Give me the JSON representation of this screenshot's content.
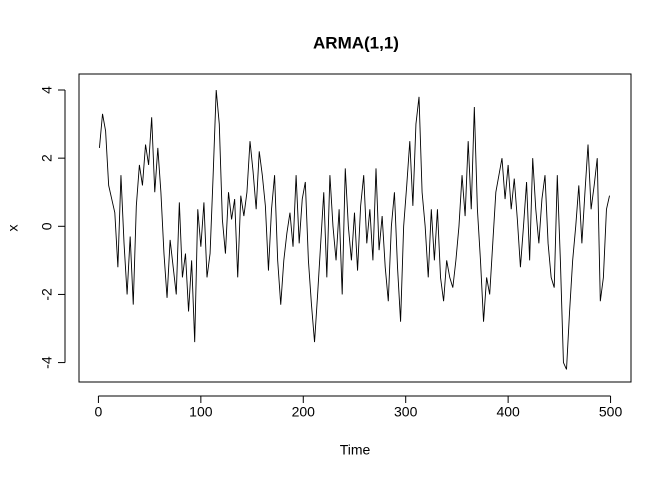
{
  "chart_data": {
    "type": "line",
    "title": "ARMA(1,1)",
    "xlabel": "Time",
    "ylabel": "x",
    "color": "#000000",
    "x": [
      1,
      4,
      7,
      10,
      13,
      16,
      19,
      22,
      25,
      28,
      31,
      34,
      37,
      40,
      43,
      46,
      49,
      52,
      55,
      58,
      61,
      64,
      67,
      70,
      73,
      76,
      79,
      82,
      85,
      88,
      91,
      94,
      97,
      100,
      103,
      106,
      109,
      112,
      115,
      118,
      121,
      124,
      127,
      130,
      133,
      136,
      139,
      142,
      145,
      148,
      151,
      154,
      157,
      160,
      163,
      166,
      169,
      172,
      175,
      178,
      181,
      184,
      187,
      190,
      193,
      196,
      199,
      202,
      205,
      208,
      211,
      214,
      217,
      220,
      223,
      226,
      229,
      232,
      235,
      238,
      241,
      244,
      247,
      250,
      253,
      256,
      259,
      262,
      265,
      268,
      271,
      274,
      277,
      280,
      283,
      286,
      289,
      292,
      295,
      298,
      301,
      304,
      307,
      310,
      313,
      316,
      319,
      322,
      325,
      328,
      331,
      334,
      337,
      340,
      343,
      346,
      349,
      352,
      355,
      358,
      361,
      364,
      367,
      370,
      373,
      376,
      379,
      382,
      385,
      388,
      391,
      394,
      397,
      400,
      403,
      406,
      409,
      412,
      415,
      418,
      421,
      424,
      427,
      430,
      433,
      436,
      439,
      442,
      445,
      448,
      451,
      454,
      457,
      460,
      463,
      466,
      469,
      472,
      475,
      478,
      481,
      484,
      487,
      490,
      493,
      496,
      499
    ],
    "values": [
      2.3,
      3.3,
      2.8,
      1.2,
      0.8,
      0.4,
      -1.2,
      1.5,
      -0.5,
      -2.0,
      -0.3,
      -2.3,
      0.6,
      1.8,
      1.2,
      2.4,
      1.8,
      3.2,
      1.0,
      2.3,
      1.0,
      -0.8,
      -2.1,
      -0.4,
      -1.2,
      -2.0,
      0.7,
      -1.5,
      -0.8,
      -2.5,
      -1.0,
      -3.4,
      0.5,
      -0.6,
      0.7,
      -1.5,
      -0.8,
      1.5,
      4.0,
      3.0,
      0.2,
      -0.8,
      1.0,
      0.2,
      0.8,
      -1.5,
      0.9,
      0.3,
      1.0,
      2.5,
      1.6,
      0.5,
      2.2,
      1.5,
      0.6,
      -1.3,
      0.5,
      1.5,
      -1.0,
      -2.3,
      -1.0,
      -0.2,
      0.4,
      -0.6,
      1.5,
      -0.5,
      0.8,
      1.3,
      -1.0,
      -2.3,
      -3.4,
      -2.0,
      -0.5,
      1.0,
      -1.5,
      1.5,
      0.0,
      -1.0,
      0.5,
      -2.0,
      1.7,
      0.0,
      -1.0,
      0.4,
      -1.3,
      0.6,
      1.5,
      -0.5,
      0.5,
      -1.0,
      1.7,
      -0.7,
      0.3,
      -1.2,
      -2.2,
      0.0,
      1.0,
      -1.2,
      -2.8,
      0.0,
      1.2,
      2.5,
      0.6,
      3.0,
      3.8,
      1.0,
      0.0,
      -1.5,
      0.5,
      -1.0,
      0.5,
      -1.5,
      -2.2,
      -1.0,
      -1.5,
      -1.8,
      -1.0,
      0.0,
      1.5,
      0.3,
      2.5,
      0.5,
      3.5,
      0.5,
      -1.0,
      -2.8,
      -1.5,
      -2.0,
      -0.5,
      1.0,
      1.5,
      2.0,
      0.8,
      1.8,
      0.5,
      1.4,
      0.2,
      -1.2,
      0.0,
      1.3,
      -1.0,
      2.0,
      0.5,
      -0.5,
      0.8,
      1.5,
      -0.5,
      -1.5,
      -1.8,
      1.5,
      -1.0,
      -4.0,
      -4.2,
      -2.5,
      -1.0,
      0.0,
      1.2,
      -0.5,
      1.0,
      2.4,
      0.5,
      1.2,
      2.0,
      -2.2,
      -1.5,
      0.5,
      0.9
    ],
    "xlim": [
      -18.96,
      519.96
    ],
    "ylim": [
      -4.57,
      4.47
    ],
    "xticks": [
      0,
      100,
      200,
      300,
      400,
      500
    ],
    "yticks": [
      -4,
      -2,
      0,
      2,
      4
    ]
  }
}
